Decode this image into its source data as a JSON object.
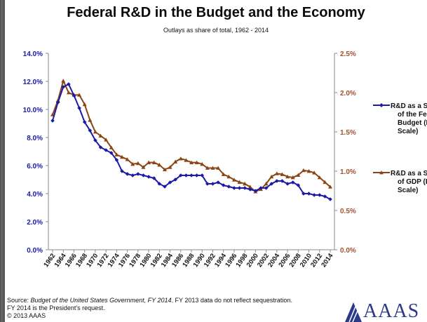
{
  "title": "Federal R&D in the Budget and the Economy",
  "subtitle": "Outlays as share of total, 1962 - 2014",
  "source": {
    "prefix": "Source: ",
    "doc": "Budget of the United States Government, FY 2014",
    "rest": ". FY 2013 data do not reflect sequestration. FY 2014 is the President's request.",
    "copyright": "© 2013 AAAS"
  },
  "logo": {
    "text": "AAAS"
  },
  "colors": {
    "budget": "#1a1aa8",
    "gdp": "#8b4513",
    "axis_left": "#1a1aa8",
    "axis_right": "#a0522d"
  },
  "chart_data": {
    "type": "line",
    "title": "Federal R&D in the Budget and the Economy",
    "subtitle": "Outlays as share of total, 1962 - 2014",
    "x": [
      1962,
      1963,
      1964,
      1965,
      1966,
      1967,
      1968,
      1969,
      1970,
      1971,
      1972,
      1973,
      1974,
      1975,
      1976,
      1977,
      1978,
      1979,
      1980,
      1981,
      1982,
      1983,
      1984,
      1985,
      1986,
      1987,
      1988,
      1989,
      1990,
      1991,
      1992,
      1993,
      1994,
      1995,
      1996,
      1997,
      1998,
      1999,
      2000,
      2001,
      2002,
      2003,
      2004,
      2005,
      2006,
      2007,
      2008,
      2009,
      2010,
      2011,
      2012,
      2013,
      2014
    ],
    "x_tick_labels": [
      "1962",
      "1964",
      "1966",
      "1968",
      "1970",
      "1972",
      "1974",
      "1976",
      "1978",
      "1980",
      "1982",
      "1984",
      "1986",
      "1988",
      "1990",
      "1992",
      "1994",
      "1996",
      "1998",
      "2000",
      "2002",
      "2004",
      "2006",
      "2008",
      "2010",
      "2012",
      "2014"
    ],
    "y_left": {
      "ylim": [
        0,
        14
      ],
      "ticks": [
        "0.0%",
        "2.0%",
        "4.0%",
        "6.0%",
        "8.0%",
        "10.0%",
        "12.0%",
        "14.0%"
      ],
      "tick_values": [
        0,
        2,
        4,
        6,
        8,
        10,
        12,
        14
      ]
    },
    "y_right": {
      "ylim": [
        0,
        2.5
      ],
      "ticks": [
        "0.0%",
        "0.5%",
        "1.0%",
        "1.5%",
        "2.0%",
        "2.5%"
      ],
      "tick_values": [
        0,
        0.5,
        1.0,
        1.5,
        2.0,
        2.5
      ]
    },
    "series": [
      {
        "name": "R&D as a Share of the Federal Budget (Left Scale)",
        "legend_lines": [
          "R&D as a Share",
          "of the Federal",
          "Budget (Left",
          "Scale)"
        ],
        "axis": "left",
        "marker": "diamond",
        "values": [
          9.2,
          10.5,
          11.6,
          11.8,
          11.0,
          10.1,
          9.1,
          8.5,
          7.8,
          7.3,
          7.1,
          6.9,
          6.4,
          5.6,
          5.4,
          5.3,
          5.4,
          5.3,
          5.2,
          5.1,
          4.7,
          4.5,
          4.8,
          5.0,
          5.3,
          5.3,
          5.3,
          5.3,
          5.3,
          4.7,
          4.7,
          4.8,
          4.6,
          4.5,
          4.4,
          4.4,
          4.4,
          4.3,
          4.2,
          4.4,
          4.4,
          4.7,
          4.9,
          4.9,
          4.7,
          4.8,
          4.6,
          4.0,
          4.0,
          3.9,
          3.9,
          3.8,
          3.6
        ]
      },
      {
        "name": "R&D as a Share of GDP (Right Scale)",
        "legend_lines": [
          "R&D as a Share",
          "of GDP (Right",
          "Scale)"
        ],
        "axis": "right",
        "marker": "triangle",
        "values": [
          1.72,
          1.9,
          2.15,
          2.0,
          1.97,
          1.97,
          1.85,
          1.65,
          1.5,
          1.45,
          1.4,
          1.3,
          1.21,
          1.18,
          1.15,
          1.09,
          1.1,
          1.05,
          1.11,
          1.11,
          1.08,
          1.02,
          1.05,
          1.12,
          1.16,
          1.14,
          1.11,
          1.11,
          1.09,
          1.04,
          1.04,
          1.04,
          0.96,
          0.93,
          0.89,
          0.86,
          0.84,
          0.8,
          0.74,
          0.77,
          0.84,
          0.93,
          0.97,
          0.96,
          0.93,
          0.92,
          0.95,
          1.01,
          1.0,
          0.98,
          0.92,
          0.86,
          0.8
        ]
      }
    ],
    "grid": false,
    "legend_position": "right"
  }
}
